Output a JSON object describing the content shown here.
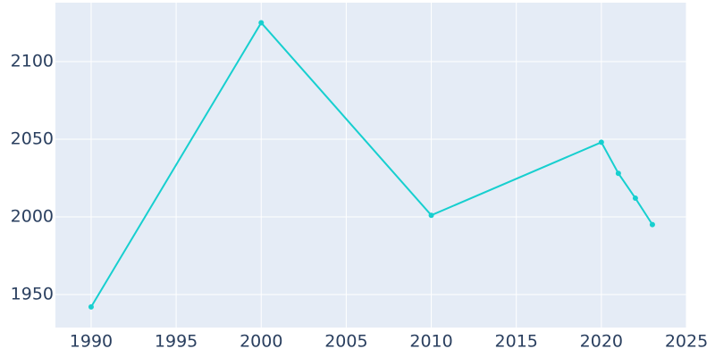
{
  "chart_data": {
    "type": "line",
    "x": [
      1990,
      2000,
      2010,
      2020,
      2021,
      2022,
      2023
    ],
    "series": [
      {
        "color": "#17cfcf",
        "values": [
          1942,
          2125,
          2001,
          2048,
          2028,
          2012,
          1995
        ]
      }
    ],
    "xlim": [
      1987.9,
      2025
    ],
    "xticks": [
      1990,
      1995,
      2000,
      2005,
      2010,
      2015,
      2020,
      2025
    ],
    "ylim": [
      1928.7,
      2137.9
    ],
    "yticks": [
      1950,
      2000,
      2050,
      2100
    ],
    "grid": true
  }
}
